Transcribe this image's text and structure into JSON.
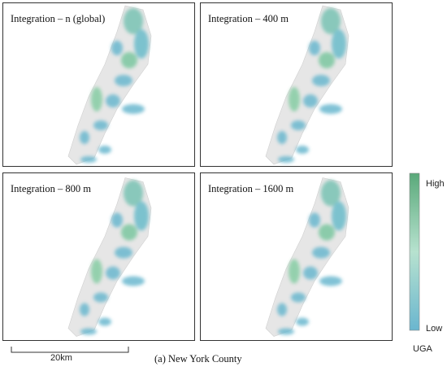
{
  "panels": [
    {
      "title": "Integration – n (global)"
    },
    {
      "title": "Integration – 400 m"
    },
    {
      "title": "Integration – 800 m"
    },
    {
      "title": "Integration – 1600 m"
    }
  ],
  "legend": {
    "high": "High",
    "low": "Low",
    "title": "UGA"
  },
  "scale_bar": {
    "label": "20km"
  },
  "caption": "(a) New York County"
}
